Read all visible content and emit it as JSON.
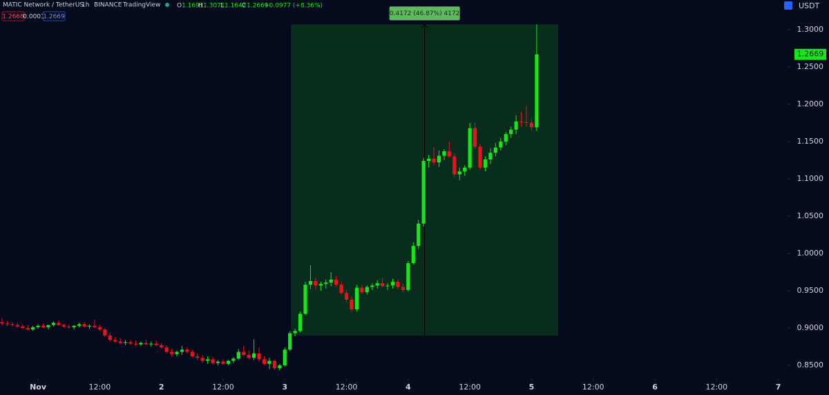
{
  "header": {
    "symbol": "MATIC Network / TetherUS",
    "interval": "1h",
    "exchange": "BINANCE",
    "source": "TradingView",
    "o_key": "O",
    "h_key": "H",
    "l_key": "L",
    "c_key": "C",
    "change": "+0.0977 (+8.36%)",
    "bid": "1.2668",
    "spread": "0.0001",
    "ask": "1.2669",
    "currency": "USDT"
  },
  "chart_data": {
    "type": "candlestick",
    "up_color": "#1be41b",
    "down_color": "#f0101a",
    "grid": false,
    "xlim": [
      -7.4,
      145.8
    ],
    "xticks": [
      {
        "value": 0,
        "label": "Nov"
      },
      {
        "value": 12,
        "label": "12:00"
      },
      {
        "value": 24,
        "label": "2"
      },
      {
        "value": 36,
        "label": "12:00"
      },
      {
        "value": 48,
        "label": "3"
      },
      {
        "value": 60,
        "label": "12:00"
      },
      {
        "value": 72,
        "label": "4"
      },
      {
        "value": 84,
        "label": "12:00"
      },
      {
        "value": 96,
        "label": "5"
      },
      {
        "value": 108,
        "label": "12:00"
      },
      {
        "value": 120,
        "label": "6"
      },
      {
        "value": 132,
        "label": "12:00"
      },
      {
        "value": 144,
        "label": "7"
      }
    ],
    "ylim": [
      0.8324,
      1.3398
    ],
    "yticks": [
      {
        "value": 0.85,
        "label": "0.8500"
      },
      {
        "value": 0.9,
        "label": "0.9000"
      },
      {
        "value": 0.95,
        "label": "0.9500"
      },
      {
        "value": 1,
        "label": "1.0000"
      },
      {
        "value": 1.05,
        "label": "1.0500"
      },
      {
        "value": 1.1,
        "label": "1.1000"
      },
      {
        "value": 1.15,
        "label": "1.1500"
      },
      {
        "value": 1.2,
        "label": "1.2000"
      },
      {
        "value": 1.25,
        "label": "1.2500"
      },
      {
        "value": 1.3,
        "label": "1.3000"
      }
    ],
    "x": [
      -7,
      -6,
      -5,
      -4,
      -3,
      -2,
      -1,
      0,
      1,
      2,
      3,
      4,
      5,
      6,
      7,
      8,
      9,
      10,
      11,
      12,
      13,
      14,
      15,
      16,
      17,
      18,
      19,
      20,
      21,
      22,
      23,
      24,
      25,
      26,
      27,
      28,
      29,
      30,
      31,
      32,
      33,
      34,
      35,
      36,
      37,
      38,
      39,
      40,
      41,
      42,
      43,
      44,
      45,
      46,
      47,
      48,
      49,
      50,
      51,
      52,
      53,
      54,
      55,
      56,
      57,
      58,
      59,
      60,
      61,
      62,
      63,
      64,
      65,
      66,
      67,
      68,
      69,
      70,
      71,
      72,
      73,
      74,
      75,
      76,
      77,
      78,
      79,
      80,
      81,
      82,
      83,
      84,
      85,
      86,
      87,
      88,
      89,
      90,
      91,
      92,
      93,
      94,
      95,
      96,
      97
    ],
    "open": [
      0.908,
      0.906,
      0.905,
      0.904,
      0.902,
      0.9,
      0.898,
      0.901,
      0.903,
      0.901,
      0.904,
      0.907,
      0.904,
      0.902,
      0.901,
      0.903,
      0.905,
      0.902,
      0.903,
      0.901,
      0.898,
      0.89,
      0.884,
      0.882,
      0.88,
      0.881,
      0.879,
      0.878,
      0.88,
      0.878,
      0.879,
      0.877,
      0.874,
      0.868,
      0.865,
      0.868,
      0.871,
      0.868,
      0.862,
      0.86,
      0.856,
      0.858,
      0.853,
      0.855,
      0.852,
      0.856,
      0.859,
      0.868,
      0.864,
      0.86,
      0.866,
      0.858,
      0.852,
      0.856,
      0.846,
      0.85,
      0.871,
      0.893,
      0.896,
      0.919,
      0.958,
      0.963,
      0.957,
      0.959,
      0.961,
      0.965,
      0.958,
      0.947,
      0.938,
      0.925,
      0.954,
      0.948,
      0.955,
      0.957,
      0.96,
      0.956,
      0.957,
      0.962,
      0.955,
      0.951,
      0.987,
      1.01,
      1.04,
      1.124,
      1.127,
      1.122,
      1.131,
      1.137,
      1.13,
      1.106,
      1.11,
      1.115,
      1.168,
      1.143,
      1.115,
      1.126,
      1.135,
      1.142,
      1.15,
      1.16,
      1.166,
      1.177,
      1.176,
      1.175,
      1.1691
    ],
    "high": [
      0.913,
      0.909,
      0.908,
      0.907,
      0.905,
      0.904,
      0.903,
      0.905,
      0.906,
      0.904,
      0.909,
      0.91,
      0.906,
      0.905,
      0.904,
      0.907,
      0.908,
      0.905,
      0.911,
      0.904,
      0.9,
      0.894,
      0.888,
      0.886,
      0.884,
      0.884,
      0.883,
      0.882,
      0.884,
      0.882,
      0.883,
      0.88,
      0.877,
      0.872,
      0.87,
      0.876,
      0.874,
      0.871,
      0.866,
      0.864,
      0.862,
      0.861,
      0.857,
      0.858,
      0.857,
      0.861,
      0.872,
      0.876,
      0.87,
      0.885,
      0.874,
      0.862,
      0.86,
      0.858,
      0.852,
      0.874,
      0.896,
      0.899,
      0.922,
      0.962,
      0.984,
      0.967,
      0.962,
      0.965,
      0.975,
      0.97,
      0.962,
      0.951,
      0.942,
      0.958,
      0.958,
      0.957,
      0.96,
      0.964,
      0.967,
      0.96,
      0.966,
      0.965,
      0.96,
      0.99,
      1.015,
      1.045,
      1.128,
      1.132,
      1.142,
      1.138,
      1.14,
      1.15,
      1.134,
      1.115,
      1.118,
      1.175,
      1.176,
      1.147,
      1.13,
      1.141,
      1.148,
      1.155,
      1.163,
      1.17,
      1.185,
      1.19,
      1.198,
      1.18,
      1.3071
    ],
    "low": [
      0.903,
      0.903,
      0.902,
      0.9,
      0.899,
      0.897,
      0.896,
      0.899,
      0.9,
      0.898,
      0.902,
      0.903,
      0.9,
      0.899,
      0.898,
      0.901,
      0.901,
      0.899,
      0.9,
      0.896,
      0.888,
      0.882,
      0.88,
      0.878,
      0.877,
      0.877,
      0.876,
      0.876,
      0.877,
      0.875,
      0.876,
      0.872,
      0.866,
      0.862,
      0.862,
      0.864,
      0.866,
      0.86,
      0.857,
      0.853,
      0.852,
      0.851,
      0.85,
      0.851,
      0.85,
      0.853,
      0.857,
      0.862,
      0.858,
      0.857,
      0.855,
      0.85,
      0.845,
      0.843,
      0.843,
      0.848,
      0.869,
      0.889,
      0.894,
      0.917,
      0.952,
      0.952,
      0.95,
      0.953,
      0.956,
      0.955,
      0.945,
      0.935,
      0.922,
      0.922,
      0.946,
      0.945,
      0.951,
      0.953,
      0.954,
      0.951,
      0.953,
      0.952,
      0.948,
      0.949,
      0.985,
      1.006,
      1.036,
      1.115,
      1.118,
      1.116,
      1.125,
      1.128,
      1.102,
      1.098,
      1.104,
      1.112,
      1.14,
      1.112,
      1.11,
      1.12,
      1.13,
      1.138,
      1.145,
      1.155,
      1.16,
      1.17,
      1.17,
      1.165,
      1.1642
    ],
    "close": [
      0.906,
      0.905,
      0.904,
      0.902,
      0.9,
      0.898,
      0.901,
      0.903,
      0.901,
      0.904,
      0.907,
      0.904,
      0.902,
      0.901,
      0.903,
      0.905,
      0.902,
      0.903,
      0.901,
      0.898,
      0.89,
      0.884,
      0.882,
      0.88,
      0.881,
      0.879,
      0.878,
      0.88,
      0.878,
      0.879,
      0.877,
      0.874,
      0.868,
      0.865,
      0.868,
      0.871,
      0.868,
      0.862,
      0.86,
      0.856,
      0.858,
      0.853,
      0.855,
      0.852,
      0.856,
      0.859,
      0.868,
      0.864,
      0.86,
      0.866,
      0.858,
      0.852,
      0.856,
      0.846,
      0.85,
      0.871,
      0.893,
      0.896,
      0.919,
      0.958,
      0.963,
      0.957,
      0.959,
      0.961,
      0.965,
      0.958,
      0.947,
      0.938,
      0.925,
      0.954,
      0.948,
      0.955,
      0.957,
      0.96,
      0.956,
      0.957,
      0.962,
      0.955,
      0.951,
      0.987,
      1.01,
      1.04,
      1.124,
      1.127,
      1.122,
      1.131,
      1.137,
      1.13,
      1.106,
      1.11,
      1.115,
      1.168,
      1.143,
      1.115,
      1.126,
      1.135,
      1.142,
      1.15,
      1.16,
      1.166,
      1.177,
      1.176,
      1.175,
      1.1691,
      1.2669
    ],
    "measure": {
      "label": "0.4172 (46.87%) 4172",
      "price_from": 0.8899,
      "price_to": 1.3071,
      "x_from": 49.2,
      "x_to": 101.2
    }
  }
}
